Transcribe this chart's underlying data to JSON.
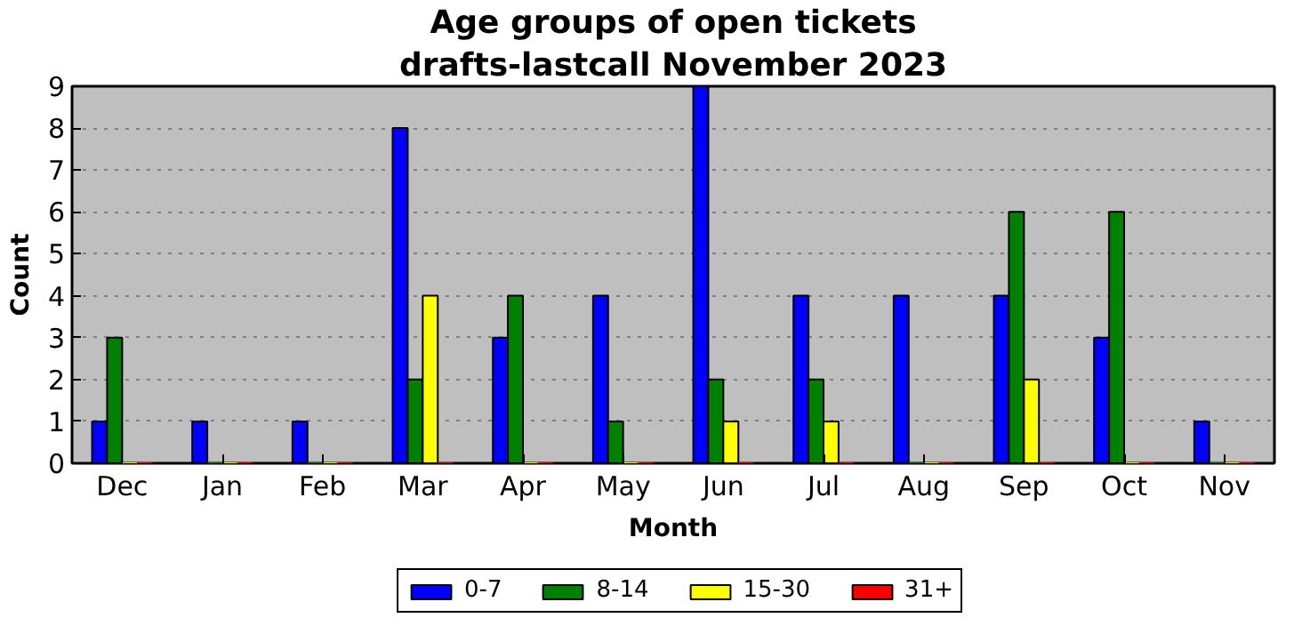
{
  "chart_data": {
    "type": "bar",
    "title": "Age groups of open tickets",
    "subtitle": "drafts-lastcall November 2023",
    "xlabel": "Month",
    "ylabel": "Count",
    "categories": [
      "Dec",
      "Jan",
      "Feb",
      "Mar",
      "Apr",
      "May",
      "Jun",
      "Jul",
      "Aug",
      "Sep",
      "Oct",
      "Nov"
    ],
    "series": [
      {
        "name": "0-7",
        "color": "#0000ff",
        "values": [
          1,
          1,
          1,
          8,
          3,
          4,
          9,
          4,
          4,
          4,
          3,
          1
        ]
      },
      {
        "name": "8-14",
        "color": "#008000",
        "values": [
          3,
          0,
          0,
          2,
          4,
          1,
          2,
          2,
          0,
          6,
          6,
          0
        ]
      },
      {
        "name": "15-30",
        "color": "#ffff00",
        "values": [
          0,
          0,
          0,
          4,
          0,
          0,
          1,
          1,
          0,
          2,
          0,
          0
        ]
      },
      {
        "name": "31+",
        "color": "#ff0000",
        "values": [
          0,
          0,
          0,
          0,
          0,
          0,
          0,
          0,
          0,
          0,
          0,
          0
        ]
      }
    ],
    "ylim": [
      0,
      9
    ],
    "yticks": [
      0,
      1,
      2,
      3,
      4,
      5,
      6,
      7,
      8,
      9
    ],
    "grid": "y",
    "legend": "bottom"
  }
}
